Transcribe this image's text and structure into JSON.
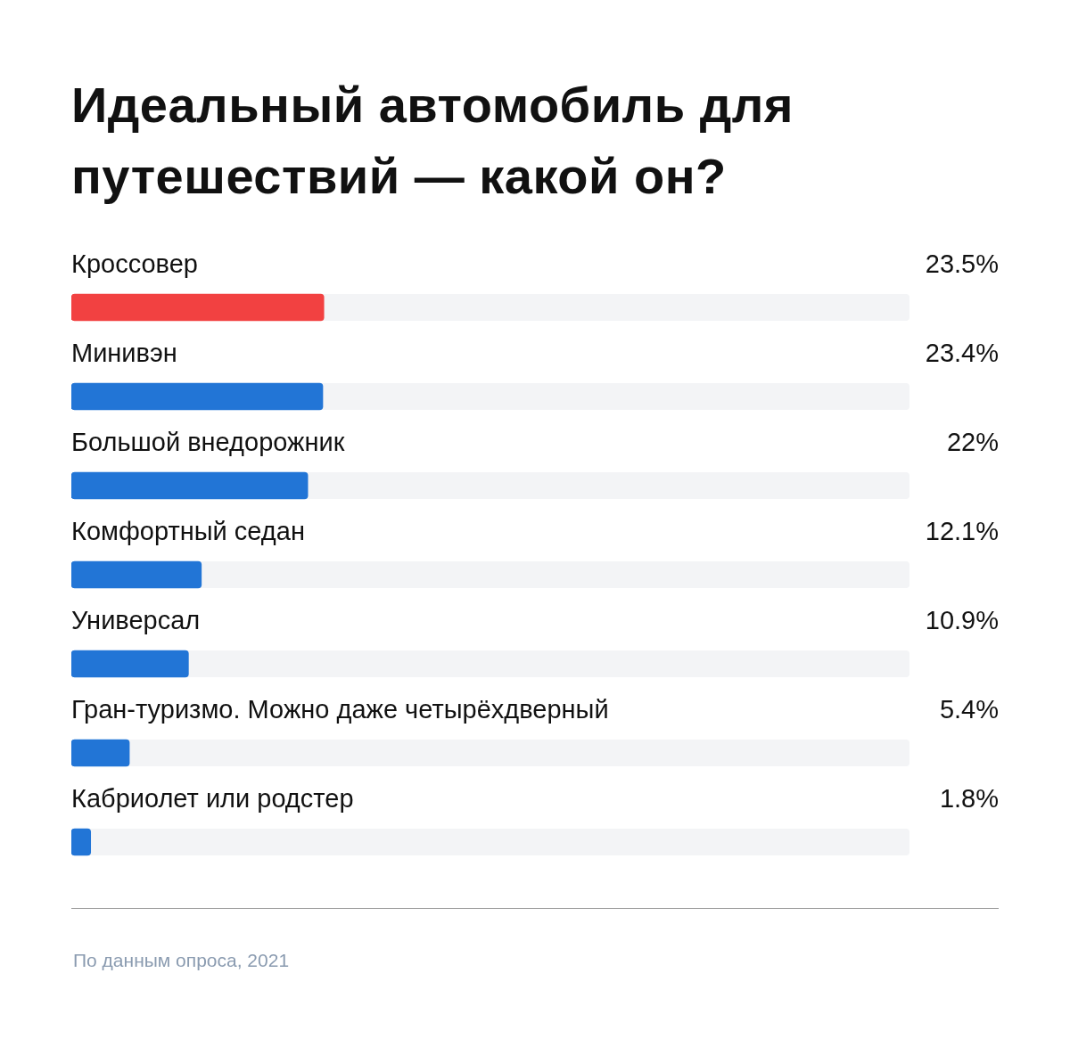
{
  "chart_data": {
    "type": "bar",
    "orientation": "horizontal",
    "title": "Идеальный автомобиль для путешествий — какой он?",
    "categories": [
      "Кроссовер",
      "Минивэн",
      "Большой внедорожник",
      "Комфортный седан",
      "Универсал",
      "Гран-туризмо. Можно даже четырёхдверный",
      "Кабриолет или родстер"
    ],
    "values": [
      23.5,
      23.4,
      22,
      12.1,
      10.9,
      5.4,
      1.8
    ],
    "value_labels": [
      "23.5%",
      "23.4%",
      "22%",
      "12.1%",
      "10.9%",
      "5.4%",
      "1.8%"
    ],
    "colors": [
      "#f24141",
      "#2275d6",
      "#2275d6",
      "#2275d6",
      "#2275d6",
      "#2275d6",
      "#2275d6"
    ],
    "xlim": [
      0,
      78
    ],
    "annotations": [
      "По данным опроса, 2021"
    ]
  }
}
